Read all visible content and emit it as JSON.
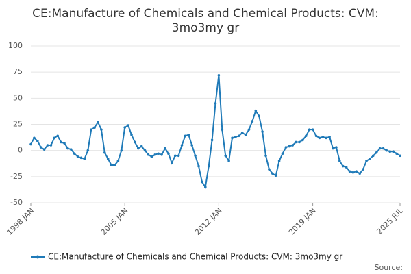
{
  "chart_data": {
    "type": "line",
    "title": [
      "CE:Manufacture of Chemicals and Chemical Products: CVM:",
      "3mo3my gr"
    ],
    "source": "Source:",
    "x": [
      "1998-01",
      "1998-04",
      "1998-07",
      "1998-10",
      "1999-01",
      "1999-04",
      "1999-07",
      "1999-10",
      "2000-01",
      "2000-04",
      "2000-07",
      "2000-10",
      "2001-01",
      "2001-04",
      "2001-07",
      "2001-10",
      "2002-01",
      "2002-04",
      "2002-07",
      "2002-10",
      "2003-01",
      "2003-04",
      "2003-07",
      "2003-10",
      "2004-01",
      "2004-04",
      "2004-07",
      "2004-10",
      "2005-01",
      "2005-04",
      "2005-07",
      "2005-10",
      "2006-01",
      "2006-04",
      "2006-07",
      "2006-10",
      "2007-01",
      "2007-04",
      "2007-07",
      "2007-10",
      "2008-01",
      "2008-04",
      "2008-07",
      "2008-10",
      "2009-01",
      "2009-04",
      "2009-07",
      "2009-10",
      "2010-01",
      "2010-04",
      "2010-07",
      "2010-10",
      "2011-01",
      "2011-04",
      "2011-07",
      "2011-10",
      "2012-01",
      "2012-04",
      "2012-07",
      "2012-10",
      "2013-01",
      "2013-04",
      "2013-07",
      "2013-10",
      "2014-01",
      "2014-04",
      "2014-07",
      "2014-10",
      "2015-01",
      "2015-04",
      "2015-07",
      "2015-10",
      "2016-01",
      "2016-04",
      "2016-07",
      "2016-10",
      "2017-01",
      "2017-04",
      "2017-07",
      "2017-10",
      "2018-01",
      "2018-04",
      "2018-07",
      "2018-10",
      "2019-01",
      "2019-04",
      "2019-07",
      "2019-10",
      "2020-01",
      "2020-04",
      "2020-07",
      "2020-10",
      "2021-01",
      "2021-04",
      "2021-07",
      "2021-10",
      "2022-01",
      "2022-04",
      "2022-07",
      "2022-10",
      "2023-01",
      "2023-04",
      "2023-07",
      "2023-10",
      "2024-01",
      "2024-04",
      "2024-07",
      "2024-10",
      "2025-01",
      "2025-04",
      "2025-07"
    ],
    "series": [
      {
        "name": "CE:Manufacture of Chemicals and Chemical Products: CVM: 3mo3my gr",
        "color": "#1f7ab8",
        "values": [
          6,
          12,
          9,
          3,
          1,
          5,
          5,
          12,
          14,
          8,
          7,
          2,
          1,
          -3,
          -6,
          -7,
          -8,
          0,
          20,
          22,
          27,
          20,
          -2,
          -8,
          -14,
          -14,
          -10,
          0,
          22,
          24,
          15,
          8,
          2,
          4,
          0,
          -4,
          -6,
          -4,
          -3,
          -4,
          2,
          -3,
          -12,
          -5,
          -5,
          5,
          14,
          15,
          5,
          -5,
          -15,
          -30,
          -35,
          -15,
          10,
          45,
          72,
          20,
          -5,
          -10,
          12,
          13,
          14,
          17,
          15,
          20,
          28,
          38,
          33,
          18,
          -5,
          -18,
          -22,
          -24,
          -10,
          -3,
          3,
          4,
          5,
          8,
          8,
          10,
          14,
          20,
          20,
          14,
          12,
          13,
          12,
          13,
          2,
          3,
          -10,
          -15,
          -16,
          -20,
          -21,
          -20,
          -22,
          -18,
          -10,
          -8,
          -5,
          -2,
          2,
          2,
          0,
          -1,
          -1,
          -3,
          -5
        ]
      }
    ],
    "xlim": [
      "1998-01",
      "2025-07"
    ],
    "xticks": [
      {
        "value": "1998-01",
        "label": "1998 JAN"
      },
      {
        "value": "2005-01",
        "label": "2005 JAN"
      },
      {
        "value": "2012-01",
        "label": "2012 JAN"
      },
      {
        "value": "2019-01",
        "label": "2019 JAN"
      },
      {
        "value": "2025-07",
        "label": "2025 JUL"
      }
    ],
    "ylim": [
      -50,
      100
    ],
    "yticks": [
      -50,
      -25,
      0,
      25,
      50,
      75,
      100
    ],
    "grid": true,
    "legend": "bottom"
  }
}
